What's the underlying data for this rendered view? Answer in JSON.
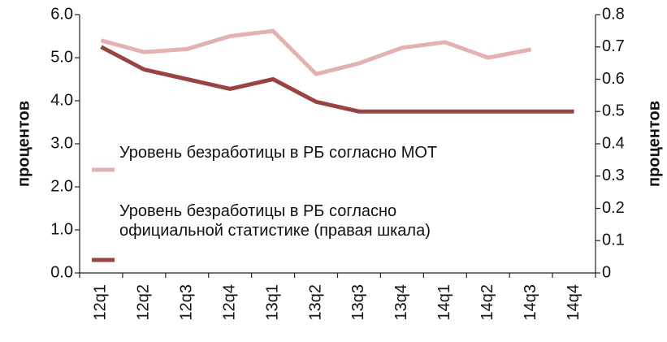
{
  "chart_data": {
    "type": "line",
    "y_label": "процентов",
    "y2_label": "процентов",
    "categories": [
      "12q1",
      "12q2",
      "12q3",
      "12q4",
      "13q1",
      "13q2",
      "13q3",
      "13q4",
      "14q1",
      "14q2",
      "14q3",
      "14q4"
    ],
    "series": [
      {
        "name": "Уровень безработицы в РБ согласно МОТ",
        "color": "#e3b1b1",
        "values": [
          5.4,
          5.13,
          5.2,
          5.5,
          5.62,
          4.62,
          4.87,
          5.23,
          5.36,
          5.0,
          5.19,
          null
        ]
      },
      {
        "name": "Уровень безработицы в РБ согласно официальной статистике (правая шкала)",
        "color": "#9a4343",
        "axis": "y2",
        "values": [
          0.7,
          0.63,
          0.6,
          0.57,
          0.6,
          0.53,
          0.5,
          0.5,
          0.5,
          0.5,
          0.5,
          0.5
        ]
      }
    ],
    "ylim": [
      0,
      6
    ],
    "yticks": [
      {
        "value": 0,
        "label": "0.0"
      },
      {
        "value": 1,
        "label": "1.0"
      },
      {
        "value": 2,
        "label": "2.0"
      },
      {
        "value": 3,
        "label": "3.0"
      },
      {
        "value": 4,
        "label": "4.0"
      },
      {
        "value": 5,
        "label": "5.0"
      },
      {
        "value": 6,
        "label": "6.0"
      }
    ],
    "y2lim": [
      0,
      0.8
    ],
    "y2ticks": [
      0,
      0.1,
      0.2,
      0.3,
      0.4,
      0.5,
      0.6,
      0.7,
      0.8
    ]
  }
}
